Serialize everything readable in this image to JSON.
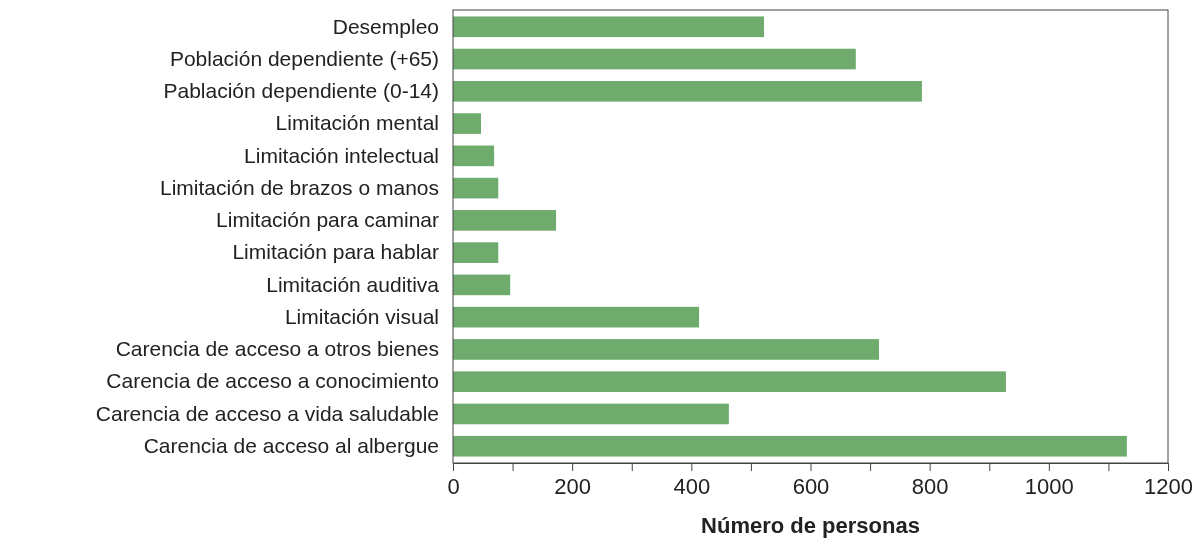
{
  "chart_data": {
    "type": "bar",
    "orientation": "horizontal",
    "xlabel": "Número de personas",
    "categories": [
      "Desempleo",
      "Población dependiente (+65)",
      "Pablación dependiente (0-14)",
      "Limitación mental",
      "Limitación intelectual",
      "Limitación de brazos o manos",
      "Limitación para caminar",
      "Limitación para hablar",
      "Limitación auditiva",
      "Limitación visual",
      "Carencia de acceso a otros bienes",
      "Carencia de acceso a conocimiento",
      "Carencia de acceso a vida saludable",
      "Carencia de acceso al albergue"
    ],
    "values": [
      522,
      676,
      787,
      47,
      69,
      76,
      173,
      76,
      96,
      413,
      715,
      928,
      463,
      1131
    ],
    "color": "#70ab6e",
    "xlim": [
      0,
      1200
    ],
    "xticks": [
      0,
      {
        "value": 100,
        "label": null
      },
      200,
      {
        "value": 300,
        "label": null
      },
      400,
      {
        "value": 500,
        "label": null
      },
      600,
      {
        "value": 700,
        "label": null
      },
      800,
      {
        "value": 900,
        "label": null
      },
      1000,
      {
        "value": 1100,
        "label": null
      },
      1200
    ],
    "grid": false
  }
}
